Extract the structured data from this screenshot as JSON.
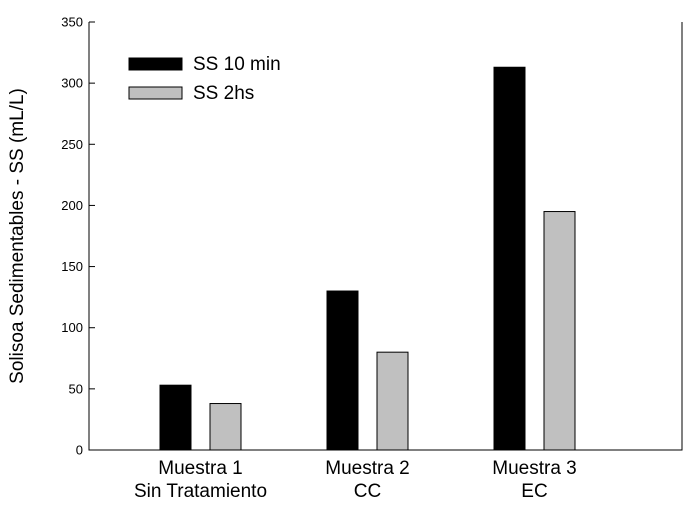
{
  "chart_data": {
    "type": "bar",
    "title": "",
    "xlabel": "",
    "ylabel": "Solisoa Sedimentables - SS (mL/L)",
    "ylim": [
      0,
      350
    ],
    "yticks": [
      0,
      50,
      100,
      150,
      200,
      250,
      300,
      350
    ],
    "categories": [
      [
        "Muestra 1",
        "Sin Tratamiento"
      ],
      [
        "Muestra 2",
        "CC"
      ],
      [
        "Muestra 3",
        "EC"
      ]
    ],
    "series": [
      {
        "name": "SS 10 min",
        "color": "#000000",
        "values": [
          53,
          130,
          313
        ]
      },
      {
        "name": "SS 2hs",
        "color": "#c0c0c0",
        "values": [
          38,
          80,
          195
        ]
      }
    ],
    "legend": {
      "position": "top-left"
    },
    "grid": false
  }
}
